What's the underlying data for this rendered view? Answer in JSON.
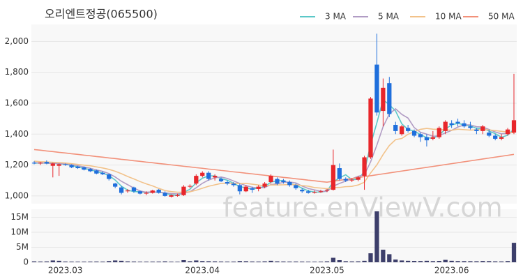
{
  "chart_data": {
    "type": "candlestick",
    "title": "오리엔트정공(065500)",
    "watermark": "feature.enViewV.com",
    "categories": [
      null,
      null,
      null,
      null,
      null,
      "2023.03",
      null,
      null,
      null,
      null,
      null,
      null,
      null,
      null,
      null,
      null,
      null,
      null,
      null,
      null,
      null,
      null,
      null,
      null,
      null,
      null,
      null,
      "2023.04",
      null,
      null,
      null,
      null,
      null,
      null,
      null,
      null,
      null,
      null,
      null,
      null,
      null,
      null,
      null,
      null,
      null,
      null,
      null,
      "2023.05",
      null,
      null,
      null,
      null,
      null,
      null,
      null,
      null,
      null,
      null,
      null,
      null,
      null,
      null,
      null,
      null,
      null,
      null,
      null,
      "2023.06",
      null,
      null,
      null,
      null,
      null,
      null,
      null,
      null,
      null,
      null
    ],
    "open": [
      1215,
      1210,
      1220,
      1195,
      1195,
      1205,
      1200,
      1190,
      1185,
      1175,
      1165,
      1150,
      1140,
      1080,
      1055,
      1030,
      1055,
      1030,
      1015,
      1020,
      1040,
      1020,
      995,
      1000,
      1005,
      1060,
      1080,
      1130,
      1150,
      1120,
      1110,
      1090,
      1080,
      1070,
      1030,
      1050,
      1045,
      1060,
      1090,
      1110,
      1100,
      1090,
      1070,
      1040,
      1030,
      1020,
      1025,
      1035,
      1040,
      1180,
      1110,
      1100,
      1105,
      1130,
      1250,
      1850,
      1550,
      1730,
      1460,
      1400,
      1440,
      1420,
      1400,
      1380,
      1370,
      1380,
      1420,
      1470,
      1480,
      1470,
      1450,
      1430,
      1420,
      1410,
      1390,
      1370,
      1400,
      1410
    ],
    "high": [
      1225,
      1220,
      1230,
      1215,
      1210,
      1210,
      1205,
      1195,
      1190,
      1180,
      1170,
      1160,
      1145,
      1085,
      1065,
      1045,
      1060,
      1035,
      1030,
      1040,
      1045,
      1030,
      1010,
      1015,
      1070,
      1075,
      1140,
      1160,
      1160,
      1140,
      1120,
      1100,
      1090,
      1080,
      1070,
      1060,
      1070,
      1090,
      1140,
      1120,
      1110,
      1100,
      1080,
      1050,
      1040,
      1035,
      1040,
      1045,
      1300,
      1210,
      1120,
      1115,
      1130,
      1260,
      1640,
      2050,
      1760,
      1770,
      1480,
      1460,
      1460,
      1430,
      1410,
      1400,
      1420,
      1450,
      1490,
      1490,
      1500,
      1490,
      1480,
      1440,
      1460,
      1430,
      1400,
      1400,
      1440,
      1790
    ],
    "low": [
      1205,
      1200,
      1205,
      1120,
      1130,
      1195,
      1180,
      1175,
      1165,
      1155,
      1140,
      1135,
      1100,
      1050,
      1010,
      1020,
      1020,
      1010,
      1005,
      1015,
      1015,
      995,
      990,
      995,
      1000,
      1050,
      1070,
      1120,
      1100,
      1100,
      1090,
      1070,
      1060,
      1010,
      1025,
      1020,
      1030,
      1050,
      1080,
      1070,
      1080,
      1060,
      1040,
      1020,
      1015,
      1015,
      1020,
      1025,
      1035,
      1100,
      1090,
      1090,
      1095,
      1040,
      1240,
      1520,
      1450,
      1510,
      1400,
      1390,
      1410,
      1380,
      1350,
      1320,
      1360,
      1370,
      1400,
      1440,
      1450,
      1440,
      1430,
      1400,
      1400,
      1380,
      1360,
      1360,
      1390,
      1400
    ],
    "close": [
      1210,
      1215,
      1210,
      1210,
      1205,
      1200,
      1185,
      1180,
      1170,
      1160,
      1145,
      1140,
      1110,
      1060,
      1020,
      1035,
      1030,
      1015,
      1020,
      1035,
      1020,
      1000,
      1005,
      1005,
      1060,
      1065,
      1130,
      1150,
      1110,
      1130,
      1095,
      1080,
      1070,
      1030,
      1060,
      1040,
      1060,
      1080,
      1130,
      1080,
      1090,
      1070,
      1050,
      1030,
      1020,
      1025,
      1030,
      1040,
      1200,
      1110,
      1100,
      1105,
      1120,
      1250,
      1630,
      1540,
      1700,
      1530,
      1420,
      1450,
      1420,
      1390,
      1380,
      1360,
      1380,
      1440,
      1480,
      1460,
      1470,
      1450,
      1440,
      1420,
      1450,
      1390,
      1370,
      1380,
      1430,
      1490
    ],
    "up_color": "#e8262b",
    "down_color": "#1f6fdc",
    "ma_series": [
      {
        "name": "3 MA",
        "color": "#5bc8c8",
        "values": [
          1212,
          1213,
          1212,
          1212,
          1208,
          1205,
          1197,
          1188,
          1178,
          1170,
          1158,
          1148,
          1132,
          1103,
          1063,
          1038,
          1028,
          1027,
          1022,
          1023,
          1025,
          1018,
          1008,
          1003,
          1023,
          1043,
          1085,
          1115,
          1130,
          1130,
          1112,
          1102,
          1082,
          1060,
          1053,
          1043,
          1053,
          1060,
          1090,
          1097,
          1100,
          1080,
          1070,
          1050,
          1033,
          1025,
          1025,
          1032,
          1090,
          1117,
          1137,
          1105,
          1108,
          1158,
          1333,
          1473,
          1623,
          1590,
          1550,
          1467,
          1430,
          1420,
          1397,
          1377,
          1373,
          1393,
          1433,
          1460,
          1470,
          1460,
          1453,
          1437,
          1437,
          1420,
          1403,
          1380,
          1393,
          1433
        ]
      },
      {
        "name": "5 MA",
        "color": "#b19cc4",
        "values": [
          1215,
          1214,
          1212,
          1211,
          1210,
          1208,
          1202,
          1196,
          1188,
          1179,
          1168,
          1159,
          1145,
          1123,
          1095,
          1073,
          1051,
          1032,
          1024,
          1027,
          1024,
          1020,
          1016,
          1013,
          1018,
          1027,
          1053,
          1082,
          1103,
          1117,
          1123,
          1113,
          1097,
          1081,
          1067,
          1056,
          1052,
          1054,
          1074,
          1078,
          1088,
          1090,
          1084,
          1064,
          1048,
          1039,
          1031,
          1029,
          1063,
          1081,
          1096,
          1111,
          1127,
          1137,
          1221,
          1329,
          1448,
          1530,
          1564,
          1528,
          1504,
          1442,
          1412,
          1400,
          1386,
          1390,
          1408,
          1424,
          1446,
          1460,
          1460,
          1448,
          1446,
          1430,
          1414,
          1402,
          1404,
          1414
        ]
      },
      {
        "name": "10 MA",
        "color": "#f2c28a",
        "values": [
          1225,
          1222,
          1220,
          1218,
          1216,
          1213,
          1209,
          1204,
          1199,
          1195,
          1188,
          1181,
          1172,
          1160,
          1144,
          1126,
          1110,
          1093,
          1078,
          1065,
          1049,
          1035,
          1028,
          1024,
          1024,
          1027,
          1037,
          1050,
          1063,
          1072,
          1081,
          1083,
          1082,
          1080,
          1081,
          1076,
          1071,
          1065,
          1071,
          1071,
          1072,
          1074,
          1072,
          1067,
          1063,
          1054,
          1051,
          1047,
          1054,
          1055,
          1060,
          1062,
          1071,
          1089,
          1149,
          1201,
          1268,
          1326,
          1364,
          1372,
          1399,
          1416,
          1431,
          1437,
          1432,
          1430,
          1428,
          1425,
          1432,
          1429,
          1426,
          1428,
          1430,
          1427,
          1423,
          1418,
          1413,
          1409
        ]
      },
      {
        "name": "50 MA",
        "color": "#f2917a",
        "values": [
          1300,
          1296,
          1291,
          1287,
          1282,
          1278,
          1273,
          1269,
          1264,
          1260,
          1255,
          1251,
          1246,
          1242,
          1237,
          1233,
          1228,
          1224,
          1219,
          1215,
          1210,
          1206,
          1201,
          1197,
          1192,
          1188,
          1183,
          1179,
          1174,
          1170,
          1165,
          1161,
          1156,
          1152,
          1147,
          1143,
          1138,
          1134,
          1129,
          1125,
          1120,
          1116,
          1111,
          1107,
          1102,
          1098,
          1093,
          1089,
          1095,
          1101,
          1107,
          1113,
          1119,
          1125,
          1131,
          1137,
          1143,
          1149,
          1155,
          1161,
          1167,
          1173,
          1179,
          1185,
          1191,
          1197,
          1203,
          1209,
          1215,
          1221,
          1227,
          1233,
          1239,
          1245,
          1251,
          1257,
          1263,
          1269
        ]
      }
    ],
    "volume": [
      300000,
      250000,
      280000,
      600000,
      500000,
      250000,
      220000,
      200000,
      210000,
      230000,
      250000,
      220000,
      400000,
      600000,
      500000,
      300000,
      250000,
      200000,
      210000,
      220000,
      230000,
      300000,
      200000,
      180000,
      700000,
      350000,
      600000,
      400000,
      350000,
      300000,
      250000,
      220000,
      230000,
      400000,
      350000,
      260000,
      240000,
      300000,
      500000,
      300000,
      260000,
      240000,
      250000,
      230000,
      200000,
      190000,
      210000,
      300000,
      1500000,
      700000,
      350000,
      280000,
      300000,
      500000,
      3000000,
      17000000,
      4200000,
      2700000,
      900000,
      600000,
      500000,
      450000,
      420000,
      500000,
      380000,
      450000,
      800000,
      500000,
      400000,
      380000,
      350000,
      330000,
      420000,
      380000,
      300000,
      280000,
      400000,
      6500000
    ],
    "volume_color": "#3d3f6b",
    "ylim": [
      950,
      2110
    ],
    "yticks": [
      {
        "value": 1000,
        "label": "1,000"
      },
      {
        "value": 1200,
        "label": "1,200"
      },
      {
        "value": 1400,
        "label": "1,400"
      },
      {
        "value": 1600,
        "label": "1,600"
      },
      {
        "value": 1800,
        "label": "1,800"
      },
      {
        "value": 2000,
        "label": "2,000"
      }
    ],
    "volume_lim": [
      0,
      17700000
    ],
    "volume_ticks": [
      0,
      {
        "value": 5000000,
        "label": "5M"
      },
      {
        "value": 10000000,
        "label": "10M"
      },
      {
        "value": 15000000,
        "label": "15M"
      }
    ],
    "grid": true
  }
}
